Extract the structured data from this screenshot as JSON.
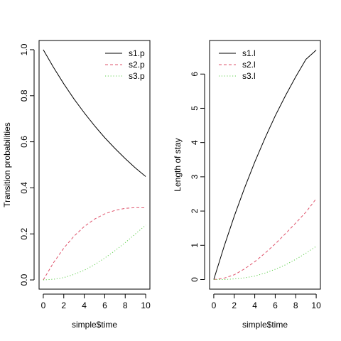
{
  "chart_data": [
    {
      "type": "line",
      "xlabel": "simple$time",
      "ylabel": "Transition probabilities",
      "xlim": [
        0,
        10
      ],
      "ylim": [
        0,
        1
      ],
      "xticks": [
        "0",
        "2",
        "4",
        "6",
        "8",
        "10"
      ],
      "yticks": [
        "0.0",
        "0.2",
        "0.4",
        "0.6",
        "0.8",
        "1.0"
      ],
      "legend_position": "top-right",
      "grid": false,
      "x": [
        0,
        1,
        2,
        3,
        4,
        5,
        6,
        7,
        8,
        9,
        10
      ],
      "series": [
        {
          "name": "s1.p",
          "color": "#000000",
          "dash": "solid",
          "values": [
            1.0,
            0.923,
            0.852,
            0.786,
            0.726,
            0.67,
            0.618,
            0.571,
            0.527,
            0.486,
            0.449
          ]
        },
        {
          "name": "s2.p",
          "color": "#DF536B",
          "dash": "dashed",
          "values": [
            0.0,
            0.075,
            0.138,
            0.19,
            0.232,
            0.264,
            0.287,
            0.302,
            0.311,
            0.314,
            0.313
          ]
        },
        {
          "name": "s3.p",
          "color": "#61D04F",
          "dash": "dotted",
          "values": [
            0.0,
            0.003,
            0.01,
            0.024,
            0.042,
            0.066,
            0.095,
            0.127,
            0.162,
            0.2,
            0.238
          ]
        }
      ]
    },
    {
      "type": "line",
      "xlabel": "simple$time",
      "ylabel": "Length of stay",
      "xlim": [
        0,
        10
      ],
      "ylim": [
        0,
        6.7
      ],
      "xticks": [
        "0",
        "2",
        "4",
        "6",
        "8",
        "10"
      ],
      "yticks": [
        "0",
        "1",
        "2",
        "3",
        "4",
        "5",
        "6"
      ],
      "legend_position": "top-left",
      "grid": false,
      "x": [
        0,
        1,
        2,
        3,
        4,
        5,
        6,
        7,
        8,
        9,
        10
      ],
      "series": [
        {
          "name": "s1.l",
          "color": "#000000",
          "dash": "solid",
          "values": [
            0.0,
            0.96,
            1.85,
            2.67,
            3.43,
            4.13,
            4.78,
            5.37,
            5.92,
            6.43,
            6.7
          ]
        },
        {
          "name": "s2.l",
          "color": "#DF536B",
          "dash": "dashed",
          "values": [
            0.0,
            0.04,
            0.14,
            0.31,
            0.52,
            0.77,
            1.04,
            1.34,
            1.65,
            1.97,
            2.36
          ]
        },
        {
          "name": "s3.l",
          "color": "#61D04F",
          "dash": "dotted",
          "values": [
            0.0,
            0.0,
            0.02,
            0.05,
            0.1,
            0.19,
            0.3,
            0.43,
            0.59,
            0.77,
            0.97
          ]
        }
      ]
    }
  ]
}
